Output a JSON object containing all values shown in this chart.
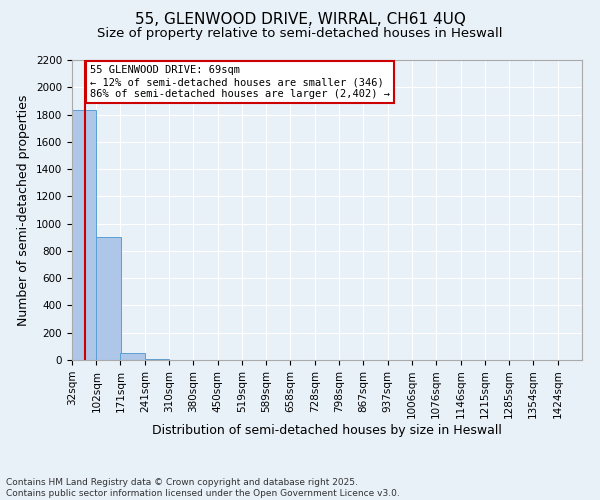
{
  "title1": "55, GLENWOOD DRIVE, WIRRAL, CH61 4UQ",
  "title2": "Size of property relative to semi-detached houses in Heswall",
  "xlabel": "Distribution of semi-detached houses by size in Heswall",
  "ylabel": "Number of semi-detached properties",
  "footnote": "Contains HM Land Registry data © Crown copyright and database right 2025.\nContains public sector information licensed under the Open Government Licence v3.0.",
  "bin_labels": [
    "32sqm",
    "102sqm",
    "171sqm",
    "241sqm",
    "310sqm",
    "380sqm",
    "450sqm",
    "519sqm",
    "589sqm",
    "658sqm",
    "728sqm",
    "798sqm",
    "867sqm",
    "937sqm",
    "1006sqm",
    "1076sqm",
    "1146sqm",
    "1215sqm",
    "1285sqm",
    "1354sqm",
    "1424sqm"
  ],
  "bin_edges": [
    32,
    102,
    171,
    241,
    310,
    380,
    450,
    519,
    589,
    658,
    728,
    798,
    867,
    937,
    1006,
    1076,
    1146,
    1215,
    1285,
    1354,
    1424
  ],
  "bar_heights": [
    1830,
    900,
    50,
    5,
    3,
    2,
    2,
    1,
    1,
    1,
    1,
    0,
    0,
    0,
    0,
    0,
    0,
    0,
    0,
    0
  ],
  "bar_color": "#aec6e8",
  "bar_edge_color": "#5a9fd4",
  "property_size": 69,
  "property_label": "55 GLENWOOD DRIVE: 69sqm",
  "pct_smaller": 12,
  "pct_larger": 86,
  "n_smaller": 346,
  "n_larger": 2402,
  "vline_color": "#cc0000",
  "annotation_box_color": "#cc0000",
  "ylim": [
    0,
    2200
  ],
  "yticks": [
    0,
    200,
    400,
    600,
    800,
    1000,
    1200,
    1400,
    1600,
    1800,
    2000,
    2200
  ],
  "background_color": "#e8f0f8",
  "grid_color": "#ffffff",
  "title_fontsize": 11,
  "subtitle_fontsize": 9.5,
  "axis_label_fontsize": 9,
  "tick_fontsize": 7.5,
  "footnote_fontsize": 6.5
}
